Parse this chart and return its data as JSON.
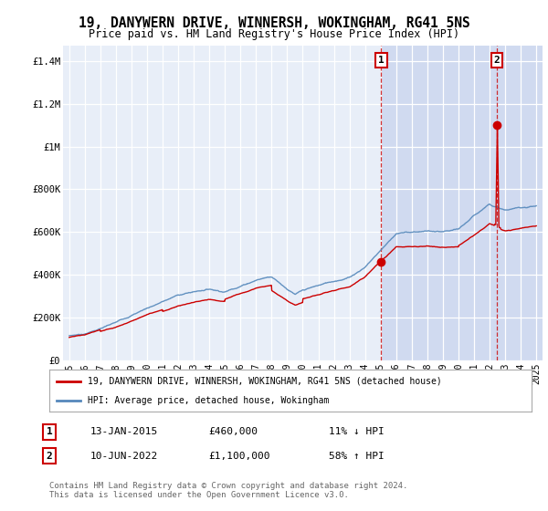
{
  "title": "19, DANYWERN DRIVE, WINNERSH, WOKINGHAM, RG41 5NS",
  "subtitle": "Price paid vs. HM Land Registry's House Price Index (HPI)",
  "title_fontsize": 10.5,
  "subtitle_fontsize": 8.5,
  "ylabel_ticks": [
    "£0",
    "£200K",
    "£400K",
    "£600K",
    "£800K",
    "£1M",
    "£1.2M",
    "£1.4M"
  ],
  "ytick_values": [
    0,
    200000,
    400000,
    600000,
    800000,
    1000000,
    1200000,
    1400000
  ],
  "ylim": [
    0,
    1470000
  ],
  "xlim_start": 1994.6,
  "xlim_end": 2025.4,
  "background_color": "#ffffff",
  "plot_bg_color": "#e8eef8",
  "plot_bg_color_shaded": "#d0daf0",
  "grid_color": "#ffffff",
  "hpi_color": "#5588bb",
  "price_color": "#cc0000",
  "transaction1_date": 2015.04,
  "transaction1_price": 460000,
  "transaction2_date": 2022.45,
  "transaction2_price": 1100000,
  "legend_label1": "19, DANYWERN DRIVE, WINNERSH, WOKINGHAM, RG41 5NS (detached house)",
  "legend_label2": "HPI: Average price, detached house, Wokingham",
  "annotation1_label": "1",
  "annotation2_label": "2",
  "footer_text": "Contains HM Land Registry data © Crown copyright and database right 2024.\nThis data is licensed under the Open Government Licence v3.0.",
  "table_row1": [
    "1",
    "13-JAN-2015",
    "£460,000",
    "11% ↓ HPI"
  ],
  "table_row2": [
    "2",
    "10-JUN-2022",
    "£1,100,000",
    "58% ↑ HPI"
  ]
}
